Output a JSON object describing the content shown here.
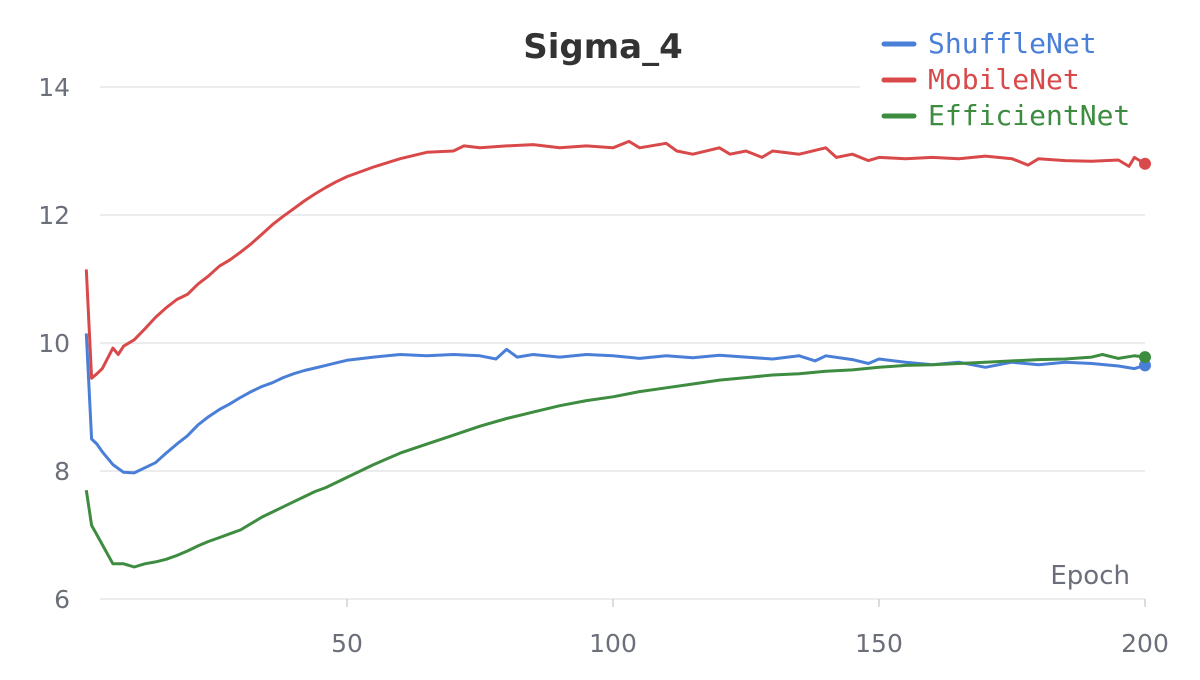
{
  "chart_data": {
    "type": "line",
    "title": "Sigma_4",
    "xlabel": "Epoch",
    "ylabel": "",
    "xlim": [
      1,
      200
    ],
    "ylim": [
      6,
      14
    ],
    "xticks": [
      50,
      100,
      150,
      200
    ],
    "yticks": [
      6,
      8,
      10,
      12,
      14
    ],
    "grid": true,
    "legend_position": "top-right",
    "series": [
      {
        "name": "ShuffleNet",
        "color": "#4a7fd8",
        "points": [
          [
            1,
            10.15
          ],
          [
            2,
            8.5
          ],
          [
            3,
            8.42
          ],
          [
            4,
            8.3
          ],
          [
            6,
            8.1
          ],
          [
            8,
            7.98
          ],
          [
            10,
            7.97
          ],
          [
            12,
            8.05
          ],
          [
            14,
            8.13
          ],
          [
            16,
            8.28
          ],
          [
            18,
            8.42
          ],
          [
            20,
            8.55
          ],
          [
            22,
            8.72
          ],
          [
            24,
            8.85
          ],
          [
            26,
            8.96
          ],
          [
            28,
            9.05
          ],
          [
            30,
            9.15
          ],
          [
            32,
            9.24
          ],
          [
            34,
            9.32
          ],
          [
            36,
            9.38
          ],
          [
            38,
            9.46
          ],
          [
            40,
            9.52
          ],
          [
            42,
            9.57
          ],
          [
            44,
            9.61
          ],
          [
            46,
            9.65
          ],
          [
            48,
            9.69
          ],
          [
            50,
            9.73
          ],
          [
            55,
            9.78
          ],
          [
            60,
            9.82
          ],
          [
            65,
            9.8
          ],
          [
            70,
            9.82
          ],
          [
            75,
            9.8
          ],
          [
            78,
            9.75
          ],
          [
            80,
            9.9
          ],
          [
            82,
            9.78
          ],
          [
            85,
            9.82
          ],
          [
            90,
            9.78
          ],
          [
            95,
            9.82
          ],
          [
            100,
            9.8
          ],
          [
            105,
            9.76
          ],
          [
            110,
            9.8
          ],
          [
            115,
            9.77
          ],
          [
            120,
            9.81
          ],
          [
            125,
            9.78
          ],
          [
            130,
            9.75
          ],
          [
            135,
            9.8
          ],
          [
            138,
            9.72
          ],
          [
            140,
            9.8
          ],
          [
            145,
            9.74
          ],
          [
            148,
            9.68
          ],
          [
            150,
            9.75
          ],
          [
            155,
            9.7
          ],
          [
            160,
            9.66
          ],
          [
            165,
            9.7
          ],
          [
            170,
            9.62
          ],
          [
            175,
            9.7
          ],
          [
            180,
            9.66
          ],
          [
            185,
            9.7
          ],
          [
            190,
            9.68
          ],
          [
            195,
            9.64
          ],
          [
            198,
            9.6
          ],
          [
            200,
            9.65
          ]
        ]
      },
      {
        "name": "MobileNet",
        "color": "#d9494a",
        "points": [
          [
            1,
            11.15
          ],
          [
            2,
            9.45
          ],
          [
            3,
            9.52
          ],
          [
            4,
            9.6
          ],
          [
            6,
            9.92
          ],
          [
            7,
            9.82
          ],
          [
            8,
            9.95
          ],
          [
            10,
            10.05
          ],
          [
            12,
            10.22
          ],
          [
            14,
            10.4
          ],
          [
            16,
            10.55
          ],
          [
            18,
            10.68
          ],
          [
            20,
            10.76
          ],
          [
            22,
            10.92
          ],
          [
            24,
            11.05
          ],
          [
            26,
            11.2
          ],
          [
            28,
            11.3
          ],
          [
            30,
            11.42
          ],
          [
            32,
            11.55
          ],
          [
            34,
            11.7
          ],
          [
            36,
            11.85
          ],
          [
            38,
            11.98
          ],
          [
            40,
            12.1
          ],
          [
            42,
            12.22
          ],
          [
            44,
            12.33
          ],
          [
            46,
            12.43
          ],
          [
            48,
            12.52
          ],
          [
            50,
            12.6
          ],
          [
            55,
            12.75
          ],
          [
            60,
            12.88
          ],
          [
            65,
            12.98
          ],
          [
            70,
            13.0
          ],
          [
            72,
            13.08
          ],
          [
            75,
            13.05
          ],
          [
            80,
            13.08
          ],
          [
            85,
            13.1
          ],
          [
            90,
            13.05
          ],
          [
            95,
            13.08
          ],
          [
            100,
            13.05
          ],
          [
            103,
            13.15
          ],
          [
            105,
            13.05
          ],
          [
            110,
            13.12
          ],
          [
            112,
            13.0
          ],
          [
            115,
            12.95
          ],
          [
            120,
            13.05
          ],
          [
            122,
            12.95
          ],
          [
            125,
            13.0
          ],
          [
            128,
            12.9
          ],
          [
            130,
            13.0
          ],
          [
            135,
            12.95
          ],
          [
            140,
            13.05
          ],
          [
            142,
            12.9
          ],
          [
            145,
            12.95
          ],
          [
            148,
            12.85
          ],
          [
            150,
            12.9
          ],
          [
            155,
            12.88
          ],
          [
            160,
            12.9
          ],
          [
            165,
            12.88
          ],
          [
            170,
            12.92
          ],
          [
            175,
            12.88
          ],
          [
            178,
            12.78
          ],
          [
            180,
            12.88
          ],
          [
            185,
            12.85
          ],
          [
            190,
            12.84
          ],
          [
            195,
            12.86
          ],
          [
            197,
            12.76
          ],
          [
            198,
            12.9
          ],
          [
            200,
            12.8
          ]
        ]
      },
      {
        "name": "EfficientNet",
        "color": "#3d8c40",
        "points": [
          [
            1,
            7.7
          ],
          [
            2,
            7.15
          ],
          [
            3,
            7.0
          ],
          [
            4,
            6.85
          ],
          [
            6,
            6.55
          ],
          [
            8,
            6.55
          ],
          [
            10,
            6.5
          ],
          [
            12,
            6.55
          ],
          [
            14,
            6.58
          ],
          [
            16,
            6.62
          ],
          [
            18,
            6.68
          ],
          [
            20,
            6.75
          ],
          [
            22,
            6.83
          ],
          [
            24,
            6.9
          ],
          [
            26,
            6.96
          ],
          [
            28,
            7.02
          ],
          [
            30,
            7.08
          ],
          [
            32,
            7.18
          ],
          [
            34,
            7.28
          ],
          [
            36,
            7.36
          ],
          [
            38,
            7.44
          ],
          [
            40,
            7.52
          ],
          [
            42,
            7.6
          ],
          [
            44,
            7.68
          ],
          [
            46,
            7.74
          ],
          [
            48,
            7.82
          ],
          [
            50,
            7.9
          ],
          [
            55,
            8.1
          ],
          [
            60,
            8.28
          ],
          [
            65,
            8.42
          ],
          [
            70,
            8.56
          ],
          [
            75,
            8.7
          ],
          [
            80,
            8.82
          ],
          [
            85,
            8.92
          ],
          [
            90,
            9.02
          ],
          [
            95,
            9.1
          ],
          [
            100,
            9.16
          ],
          [
            105,
            9.24
          ],
          [
            110,
            9.3
          ],
          [
            115,
            9.36
          ],
          [
            120,
            9.42
          ],
          [
            125,
            9.46
          ],
          [
            130,
            9.5
          ],
          [
            135,
            9.52
          ],
          [
            140,
            9.56
          ],
          [
            145,
            9.58
          ],
          [
            150,
            9.62
          ],
          [
            155,
            9.65
          ],
          [
            160,
            9.66
          ],
          [
            165,
            9.68
          ],
          [
            170,
            9.7
          ],
          [
            175,
            9.72
          ],
          [
            180,
            9.74
          ],
          [
            185,
            9.75
          ],
          [
            190,
            9.78
          ],
          [
            192,
            9.82
          ],
          [
            195,
            9.76
          ],
          [
            198,
            9.8
          ],
          [
            200,
            9.78
          ]
        ]
      }
    ]
  }
}
